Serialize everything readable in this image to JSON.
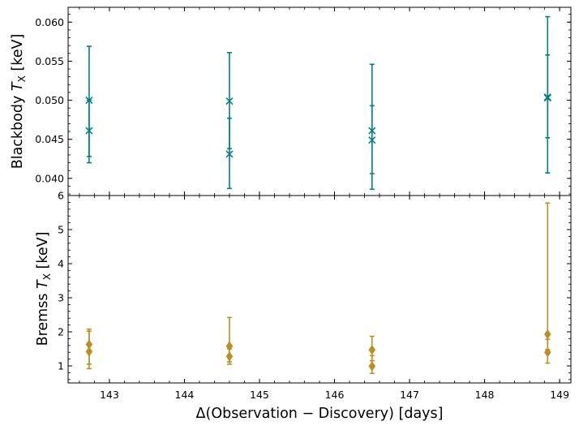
{
  "chart_data": {
    "type": "scatter",
    "xlabel": "Δ(Observation − Discovery) [days]",
    "x_ticks": [
      "143",
      "144",
      "145",
      "146",
      "147",
      "148",
      "149"
    ],
    "xlim": [
      142.45,
      149.15
    ],
    "grid": false,
    "panels": [
      {
        "id": "top",
        "ylabel_main": "Blackbody ",
        "ylabel_var": "T",
        "ylabel_sub": "X",
        "ylabel_unit": " [keV]",
        "ylim": [
          0.0378,
          0.0619
        ],
        "y_ticks": [
          "0.040",
          "0.045",
          "0.050",
          "0.055",
          "0.060"
        ],
        "y_tick_values": [
          0.04,
          0.045,
          0.05,
          0.055,
          0.06
        ],
        "minor_y_step": 0.001,
        "marker": "x",
        "color": "#008080",
        "points": [
          {
            "x": 142.73,
            "y": 0.05,
            "lo": 0.0428,
            "hi": 0.0569
          },
          {
            "x": 142.73,
            "y": 0.0461,
            "lo": 0.042,
            "hi": 0.05
          },
          {
            "x": 144.6,
            "y": 0.0499,
            "lo": 0.0438,
            "hi": 0.0561
          },
          {
            "x": 144.6,
            "y": 0.0431,
            "lo": 0.0387,
            "hi": 0.0477
          },
          {
            "x": 146.5,
            "y": 0.0461,
            "lo": 0.0406,
            "hi": 0.0546
          },
          {
            "x": 146.5,
            "y": 0.0449,
            "lo": 0.0386,
            "hi": 0.0493
          },
          {
            "x": 148.84,
            "y": 0.0504,
            "lo": 0.0407,
            "hi": 0.0607
          },
          {
            "x": 148.84,
            "y": 0.0503,
            "lo": 0.0452,
            "hi": 0.0558
          }
        ]
      },
      {
        "id": "bottom",
        "ylabel_main": "Bremss ",
        "ylabel_var": "T",
        "ylabel_sub": "X",
        "ylabel_unit": " [keV]",
        "ylim": [
          0.5,
          6.0
        ],
        "y_ticks": [
          "1",
          "2",
          "3",
          "4",
          "5",
          "6"
        ],
        "y_tick_values": [
          1,
          2,
          3,
          4,
          5,
          6
        ],
        "minor_y_step": 0.2,
        "marker": "d",
        "color": "#bd8f22",
        "points": [
          {
            "x": 142.73,
            "y": 1.63,
            "lo": 1.05,
            "hi": 2.08
          },
          {
            "x": 142.73,
            "y": 1.42,
            "lo": 0.92,
            "hi": 2.02
          },
          {
            "x": 144.6,
            "y": 1.58,
            "lo": 1.12,
            "hi": 2.42
          },
          {
            "x": 144.6,
            "y": 1.28,
            "lo": 1.05,
            "hi": 1.5
          },
          {
            "x": 146.5,
            "y": 1.47,
            "lo": 1.15,
            "hi": 1.87
          },
          {
            "x": 146.5,
            "y": 0.99,
            "lo": 0.78,
            "hi": 1.3
          },
          {
            "x": 148.84,
            "y": 1.93,
            "lo": 1.48,
            "hi": 5.78
          },
          {
            "x": 148.84,
            "y": 1.4,
            "lo": 1.08,
            "hi": 1.78
          }
        ]
      }
    ]
  }
}
